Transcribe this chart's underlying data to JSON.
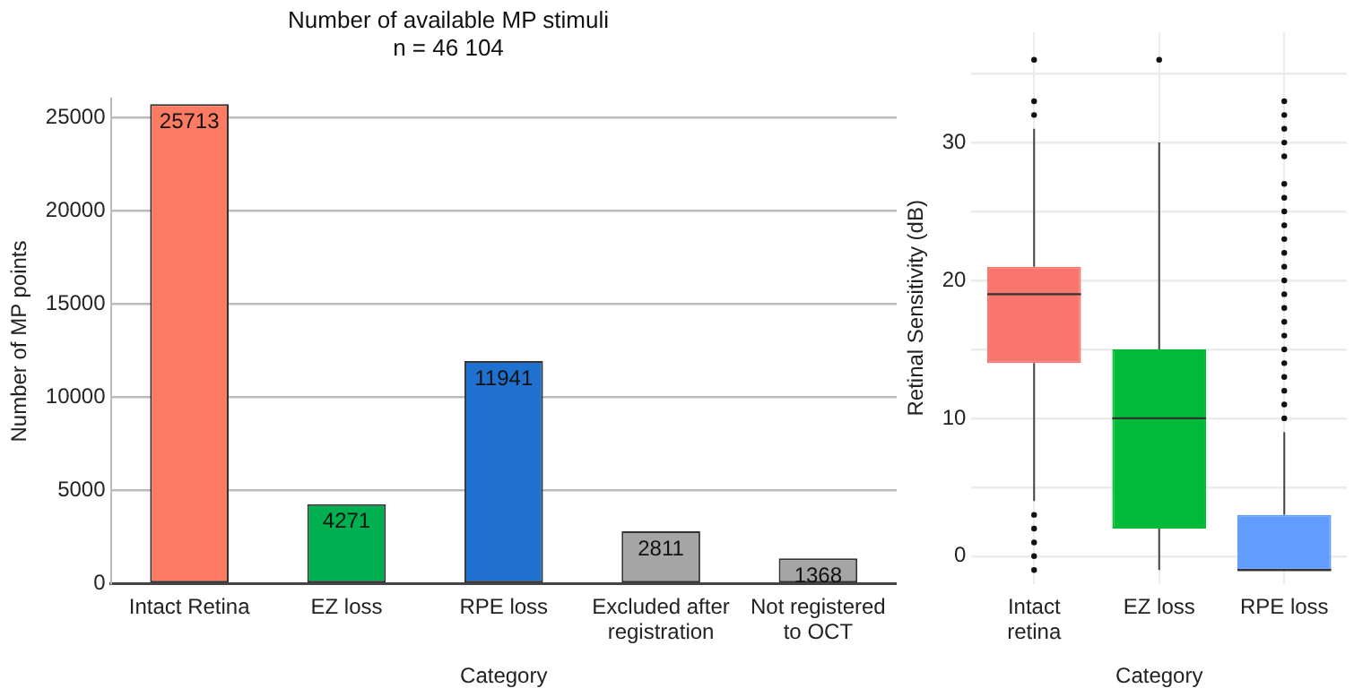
{
  "chart_data": [
    {
      "type": "bar",
      "title": "Number of available MP stimuli",
      "subtitle": "n = 46 104",
      "xlabel": "Category",
      "ylabel": "Number of MP points",
      "categories": [
        "Intact Retina",
        "EZ loss",
        "RPE loss",
        "Excluded after registration",
        "Not registered to OCT"
      ],
      "values": [
        25713,
        4271,
        11941,
        2811,
        1368
      ],
      "colors": [
        "#fd7b62",
        "#00b050",
        "#2070d0",
        "#a5a5a5",
        "#a5a5a5"
      ],
      "ylim": [
        0,
        26000
      ],
      "yticks": [
        0,
        5000,
        10000,
        15000,
        20000,
        25000
      ],
      "grid": "y",
      "data_labels": true
    },
    {
      "type": "box",
      "xlabel": "Category",
      "ylabel": "Retinal Sensitivity (dB)",
      "categories": [
        "Intact retina",
        "EZ loss",
        "RPE loss"
      ],
      "colors": [
        "#f8766d",
        "#00ba38",
        "#619cff"
      ],
      "boxes": [
        {
          "low": 4,
          "q1": 14,
          "median": 19,
          "q3": 21,
          "high": 31,
          "outliers": [
            36,
            33,
            32,
            3,
            2,
            1,
            0,
            -1
          ]
        },
        {
          "low": -1,
          "q1": 2,
          "median": 10,
          "q3": 15,
          "high": 30,
          "outliers": [
            36
          ]
        },
        {
          "low": -1,
          "q1": -1,
          "median": -1,
          "q3": 3,
          "high": 9,
          "outliers": [
            10,
            11,
            12,
            13,
            14,
            15,
            16,
            17,
            18,
            19,
            20,
            21,
            22,
            23,
            24,
            25,
            26,
            27,
            29,
            30,
            31,
            32,
            33
          ]
        }
      ],
      "ylim": [
        -2,
        38
      ],
      "yticks": [
        0,
        {
          "value": 5,
          "label": null
        },
        10,
        {
          "value": 15,
          "label": null
        },
        20,
        {
          "value": 25,
          "label": null
        },
        30,
        {
          "value": 35,
          "label": null
        }
      ],
      "grid": true
    }
  ]
}
